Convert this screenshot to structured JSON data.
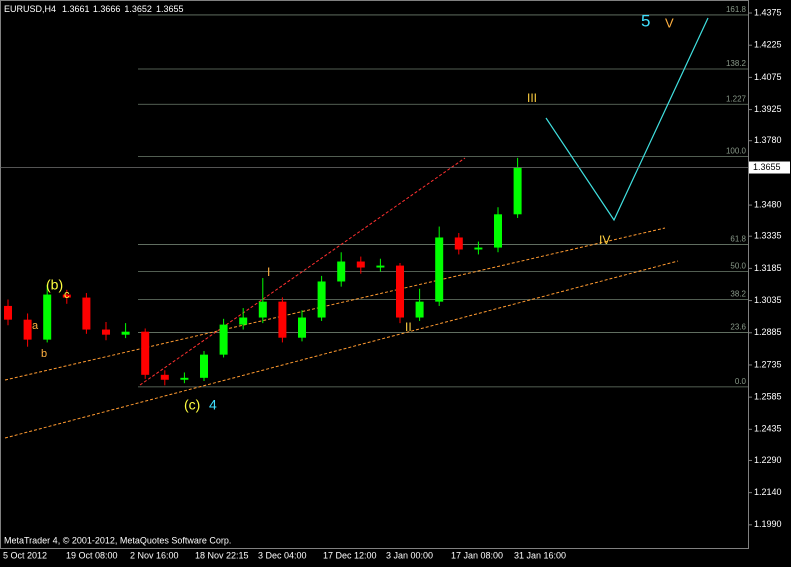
{
  "chart_data": {
    "type": "candlestick",
    "title": "EURUSD,H4",
    "header_values": [
      1.3661,
      1.3666,
      1.3652,
      1.3655
    ],
    "x_labels": [
      "5 Oct 2012",
      "19 Oct 08:00",
      "2 Nov 16:00",
      "18 Nov 22:15",
      "3 Dec 04:00",
      "17 Dec 12:00",
      "3 Jan 00:00",
      "17 Jan 08:00",
      "31 Jan 16:00"
    ],
    "open": [
      1.301,
      1.2946,
      1.2853,
      1.3063,
      1.3049,
      1.29,
      1.2876,
      1.289,
      1.2689,
      1.2666,
      1.2675,
      1.2783,
      1.2923,
      1.2956,
      1.303,
      1.2862,
      1.2956,
      1.3124,
      1.3217,
      1.3189,
      1.3198,
      1.2956,
      1.303,
      1.3329,
      1.3273,
      1.3282,
      1.3437
    ],
    "high": [
      1.304,
      1.2975,
      1.311,
      1.3085,
      1.307,
      1.2935,
      1.293,
      1.2905,
      1.271,
      1.27,
      1.28,
      1.295,
      1.3,
      1.314,
      1.305,
      1.299,
      1.315,
      1.326,
      1.324,
      1.323,
      1.321,
      1.309,
      1.338,
      1.335,
      1.331,
      1.347,
      1.37
    ],
    "low": [
      1.292,
      1.282,
      1.284,
      1.302,
      1.288,
      1.285,
      1.286,
      1.267,
      1.264,
      1.265,
      1.266,
      1.277,
      1.29,
      1.293,
      1.284,
      1.2845,
      1.294,
      1.31,
      1.316,
      1.317,
      1.293,
      1.294,
      1.301,
      1.325,
      1.325,
      1.326,
      1.342
    ],
    "close": [
      1.2946,
      1.2853,
      1.3063,
      1.3049,
      1.29,
      1.2876,
      1.289,
      1.2689,
      1.2666,
      1.2675,
      1.2783,
      1.2923,
      1.2956,
      1.303,
      1.2862,
      1.2956,
      1.3124,
      1.3217,
      1.3189,
      1.3198,
      1.2956,
      1.303,
      1.3329,
      1.3273,
      1.3282,
      1.3437,
      1.3655
    ],
    "up_color": "#00ff00",
    "down_color": "#ff0000",
    "ylim": [
      1.1882,
      1.4431
    ],
    "yticks": [
      1.4375,
      1.4225,
      1.4075,
      1.3925,
      {
        "value": 1.378,
        "label": "1.3780"
      },
      {
        "value": 1.348,
        "label": "1.3480"
      },
      1.3335,
      1.3185,
      1.3035,
      1.2885,
      1.2735,
      1.2585,
      1.2435,
      {
        "value": 1.229,
        "label": "1.2290"
      },
      {
        "value": 1.214,
        "label": "1.2140"
      },
      {
        "value": 1.199,
        "label": "1.1990"
      }
    ],
    "current_price": 1.3655,
    "fib_levels": [
      {
        "label": "161.8",
        "price": 1.4366
      },
      {
        "label": "138.2",
        "price": 1.4114
      },
      {
        "label": "1.227",
        "price": 1.395
      },
      {
        "label": "100.0",
        "price": 1.3707
      },
      {
        "label": "61.8",
        "price": 1.3296
      },
      {
        "label": "50.0",
        "price": 1.317
      },
      {
        "label": "38.2",
        "price": 1.304
      },
      {
        "label": "23.6",
        "price": 1.2886
      },
      {
        "label": "0.0",
        "price": 1.2633
      }
    ],
    "annotations": [
      "(b)",
      "c",
      "a",
      "b",
      "(c)",
      "4",
      "I",
      "II",
      "III",
      "IV",
      "5",
      "V"
    ],
    "copyright": "MetaTrader 4, © 2001-2012, MetaQuotes Software Corp."
  }
}
